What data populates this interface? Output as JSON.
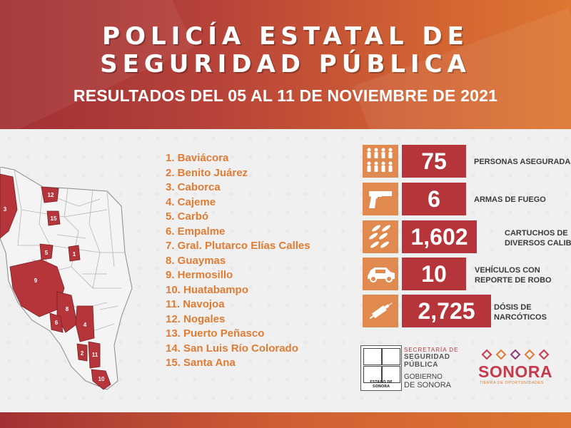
{
  "header": {
    "title_line1": "POLICÍA ESTATAL DE",
    "title_line2": "SEGURIDAD PÚBLICA",
    "subtitle": "RESULTADOS DEL 05 AL 11 DE NOVIEMBRE DE 2021"
  },
  "map": {
    "labels": [
      "12",
      "3",
      "15",
      "5",
      "1",
      "9",
      "8",
      "6",
      "4",
      "2",
      "11",
      "10"
    ]
  },
  "municipalities": [
    "1. Baviácora",
    "2. Benito Juárez",
    "3. Caborca",
    "4. Cajeme",
    "5. Carbó",
    "6. Empalme",
    "7.  Gral. Plutarco Elías Calles",
    "8. Guaymas",
    "9. Hermosillo",
    "10. Huatabampo",
    "11. Navojoa",
    "12. Nogales",
    "13. Puerto Peñasco",
    "14. San Luis Río Colorado",
    "15. Santa Ana"
  ],
  "stats": [
    {
      "icon": "people-icon",
      "value": "75",
      "label_line1": "PERSONAS ASEGURADAS",
      "label_line2": ""
    },
    {
      "icon": "pistol-icon",
      "value": "6",
      "label_line1": "ARMAS DE FUEGO",
      "label_line2": ""
    },
    {
      "icon": "cartridges-icon",
      "value": "1,602",
      "label_line1": "CARTUCHOS DE",
      "label_line2": "DIVERSOS CALIBRES"
    },
    {
      "icon": "car-icon",
      "value": "10",
      "label_line1": "VEHÍCULOS CON",
      "label_line2": "REPORTE DE ROBO"
    },
    {
      "icon": "syringe-icon",
      "value": "2,725",
      "label_line1": "DÓSIS DE",
      "label_line2": "NARCÓTICOS"
    }
  ],
  "logos": {
    "seal_text": "ESTADO DE SONORA",
    "ssp_line1": "SECRETARÍA DE",
    "ssp_line2": "SEGURIDAD",
    "ssp_line3": "PÚBLICA",
    "gov_line1": "GOBIERNO",
    "gov_line2": "DE SONORA",
    "sonora": "SONORA",
    "sonora_tagline": "TIERRA DE OPORTUNIDADES"
  },
  "colors": {
    "banner_start": "#a23034",
    "banner_end": "#de7631",
    "value_box": "#b5353a",
    "icon_box": "#e08a4f",
    "list_text": "#e07c34",
    "map_highlight": "#b5353a"
  }
}
